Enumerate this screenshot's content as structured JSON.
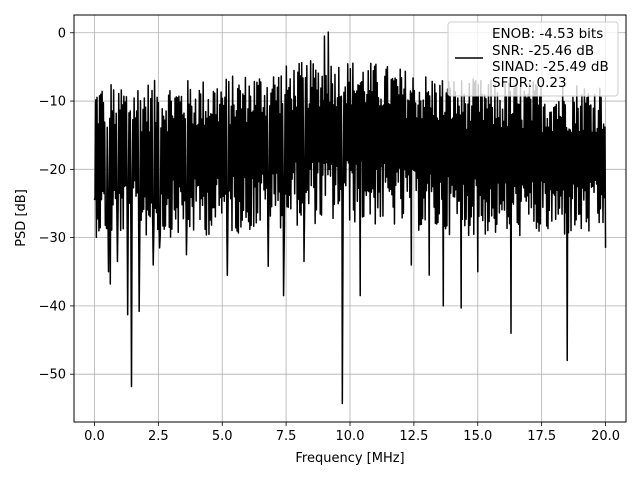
{
  "chart_data": {
    "type": "line",
    "xlabel": "Frequency [MHz]",
    "ylabel": "PSD [dB]",
    "xlim": [
      -0.8,
      20.8
    ],
    "ylim": [
      -57,
      2.6
    ],
    "xticks": [
      0.0,
      2.5,
      5.0,
      7.5,
      10.0,
      12.5,
      15.0,
      17.5,
      20.0
    ],
    "xtick_labels": [
      "0.0",
      "2.5",
      "5.0",
      "7.5",
      "10.0",
      "12.5",
      "15.0",
      "17.5",
      "20.0"
    ],
    "yticks": [
      0,
      -10,
      -20,
      -30,
      -40,
      -50
    ],
    "ytick_labels": [
      "0",
      "−10",
      "−20",
      "−30",
      "−40",
      "−50"
    ],
    "grid": true,
    "legend_position": "top-right",
    "line_color": "#000000",
    "series": [
      {
        "legend_lines": [
          "ENOB: -4.53 bits",
          "SNR: -25.46 dB",
          "SINAD: -25.49 dB",
          "SFDR: 0.23"
        ],
        "x_range": [
          0,
          20
        ],
        "point_count": 800,
        "notable_points": [
          {
            "x": 0.0,
            "y": -4.2
          },
          {
            "x": 0.0,
            "y": -24.5
          },
          {
            "x": 0.45,
            "y": -26.5
          },
          {
            "x": 0.55,
            "y": -35
          },
          {
            "x": 0.62,
            "y": -36.8
          },
          {
            "x": 0.9,
            "y": -33.5
          },
          {
            "x": 1.3,
            "y": -41.3
          },
          {
            "x": 1.45,
            "y": -51.8
          },
          {
            "x": 1.75,
            "y": -40.8
          },
          {
            "x": 2.3,
            "y": -34
          },
          {
            "x": 2.55,
            "y": -31.5
          },
          {
            "x": 3.6,
            "y": -32.5
          },
          {
            "x": 5.2,
            "y": -35.5
          },
          {
            "x": 6.8,
            "y": -34.2
          },
          {
            "x": 7.4,
            "y": -38.5
          },
          {
            "x": 8.2,
            "y": -33.5
          },
          {
            "x": 9.0,
            "y": -0.5
          },
          {
            "x": 9.15,
            "y": 0.1
          },
          {
            "x": 9.7,
            "y": -54.3
          },
          {
            "x": 10.4,
            "y": -38.5
          },
          {
            "x": 12.4,
            "y": -34
          },
          {
            "x": 13.1,
            "y": -35.5
          },
          {
            "x": 13.65,
            "y": -40
          },
          {
            "x": 14.35,
            "y": -40.3
          },
          {
            "x": 15.0,
            "y": -35
          },
          {
            "x": 16.3,
            "y": -44
          },
          {
            "x": 18.5,
            "y": -48
          },
          {
            "x": 20.0,
            "y": -31.5
          }
        ],
        "envelope_top_approx": -7,
        "envelope_bottom_approx": -30
      }
    ]
  }
}
